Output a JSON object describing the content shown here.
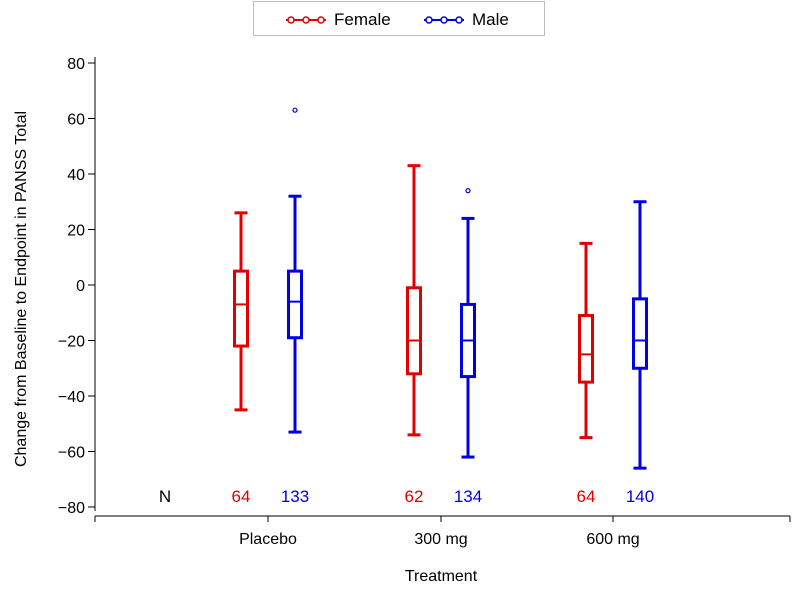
{
  "chart_data": {
    "type": "boxplot",
    "title": "",
    "xlabel": "Treatment",
    "ylabel": "Change from Baseline to Endpoint in PANSS Total",
    "ylim": [
      -80,
      80
    ],
    "yticks": [
      -80,
      -60,
      -40,
      -20,
      0,
      20,
      40,
      60,
      80
    ],
    "categories": [
      "Placebo",
      "300 mg",
      "600 mg"
    ],
    "n_label": "N",
    "legend": {
      "position": "top-center"
    },
    "series": [
      {
        "name": "Female",
        "color": "#e00000",
        "boxes": [
          {
            "min": -45,
            "q1": -22,
            "median": -7,
            "q3": 5,
            "max": 26,
            "outliers": [],
            "n": "64"
          },
          {
            "min": -54,
            "q1": -32,
            "median": -20,
            "q3": -1,
            "max": 43,
            "outliers": [],
            "n": "62"
          },
          {
            "min": -55,
            "q1": -35,
            "median": -25,
            "q3": -11,
            "max": 15,
            "outliers": [],
            "n": "64"
          }
        ]
      },
      {
        "name": "Male",
        "color": "#0000e0",
        "boxes": [
          {
            "min": -53,
            "q1": -19,
            "median": -6,
            "q3": 5,
            "max": 32,
            "outliers": [
              63
            ],
            "n": "133"
          },
          {
            "min": -62,
            "q1": -33,
            "median": -20,
            "q3": -7,
            "max": 24,
            "outliers": [
              34
            ],
            "n": "134"
          },
          {
            "min": -66,
            "q1": -30,
            "median": -20,
            "q3": -5,
            "max": 30,
            "outliers": [],
            "n": "140"
          }
        ]
      }
    ]
  }
}
